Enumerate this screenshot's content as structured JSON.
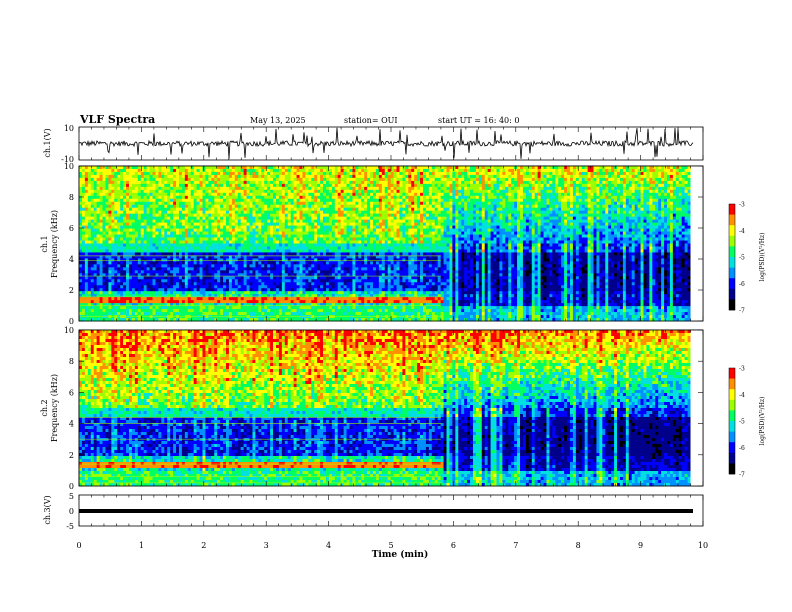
{
  "header": {
    "title": "VLF Spectra",
    "date": "May 13, 2025",
    "station": "station= OUI",
    "start": "start  UT  =   16: 40: 0"
  },
  "colors": {
    "colormap": [
      "#000000",
      "#00008b",
      "#0000ff",
      "#0090ff",
      "#00e0e0",
      "#00ff60",
      "#9cff00",
      "#ffff00",
      "#ff9000",
      "#ff0000",
      "#ffffff"
    ]
  },
  "chart_data": [
    {
      "type": "line",
      "name": "ch1-waveform",
      "ylabel": "ch.1(V)",
      "yticks": [
        "10",
        "-10"
      ],
      "ylim": [
        -10,
        10
      ],
      "xlim": [
        0,
        10
      ]
    },
    {
      "type": "heatmap",
      "name": "ch1-spectrogram",
      "ylabel": "ch.1\nFrequency (kHz)",
      "ylabel_line1": "ch.1",
      "ylabel_line2": "Frequency (kHz)",
      "yticks": [
        "0",
        "2",
        "4",
        "6",
        "8",
        "10"
      ],
      "ylim": [
        0,
        10
      ],
      "xlim": [
        0,
        9.8
      ],
      "colorbar": {
        "label": "log(PSD)(V²/Hz)",
        "ticks": [
          "-3",
          "-4",
          "-5",
          "-6",
          "-7"
        ],
        "range": [
          -7,
          -3
        ]
      },
      "change_time_min": 5.8
    },
    {
      "type": "heatmap",
      "name": "ch2-spectrogram",
      "ylabel_line1": "ch.2",
      "ylabel_line2": "Frequency (kHz)",
      "yticks": [
        "0",
        "2",
        "4",
        "6",
        "8",
        "10"
      ],
      "ylim": [
        0,
        10
      ],
      "xlim": [
        0,
        9.8
      ],
      "colorbar": {
        "label": "log(PSD)(V²/Hz)",
        "ticks": [
          "-3",
          "-4",
          "-5",
          "-6",
          "-7"
        ],
        "range": [
          -7,
          -3
        ]
      },
      "change_time_min": 5.8
    },
    {
      "type": "line",
      "name": "ch3-waveform",
      "ylabel": "ch.3(V)",
      "yticks": [
        "5",
        "0",
        "-5"
      ],
      "ylim": [
        -5,
        5
      ],
      "value": 0,
      "xlim": [
        0,
        10
      ]
    }
  ],
  "xaxis": {
    "label": "Time (min)",
    "ticks": [
      "0",
      "1",
      "2",
      "3",
      "4",
      "5",
      "6",
      "7",
      "8",
      "9",
      "10"
    ]
  }
}
